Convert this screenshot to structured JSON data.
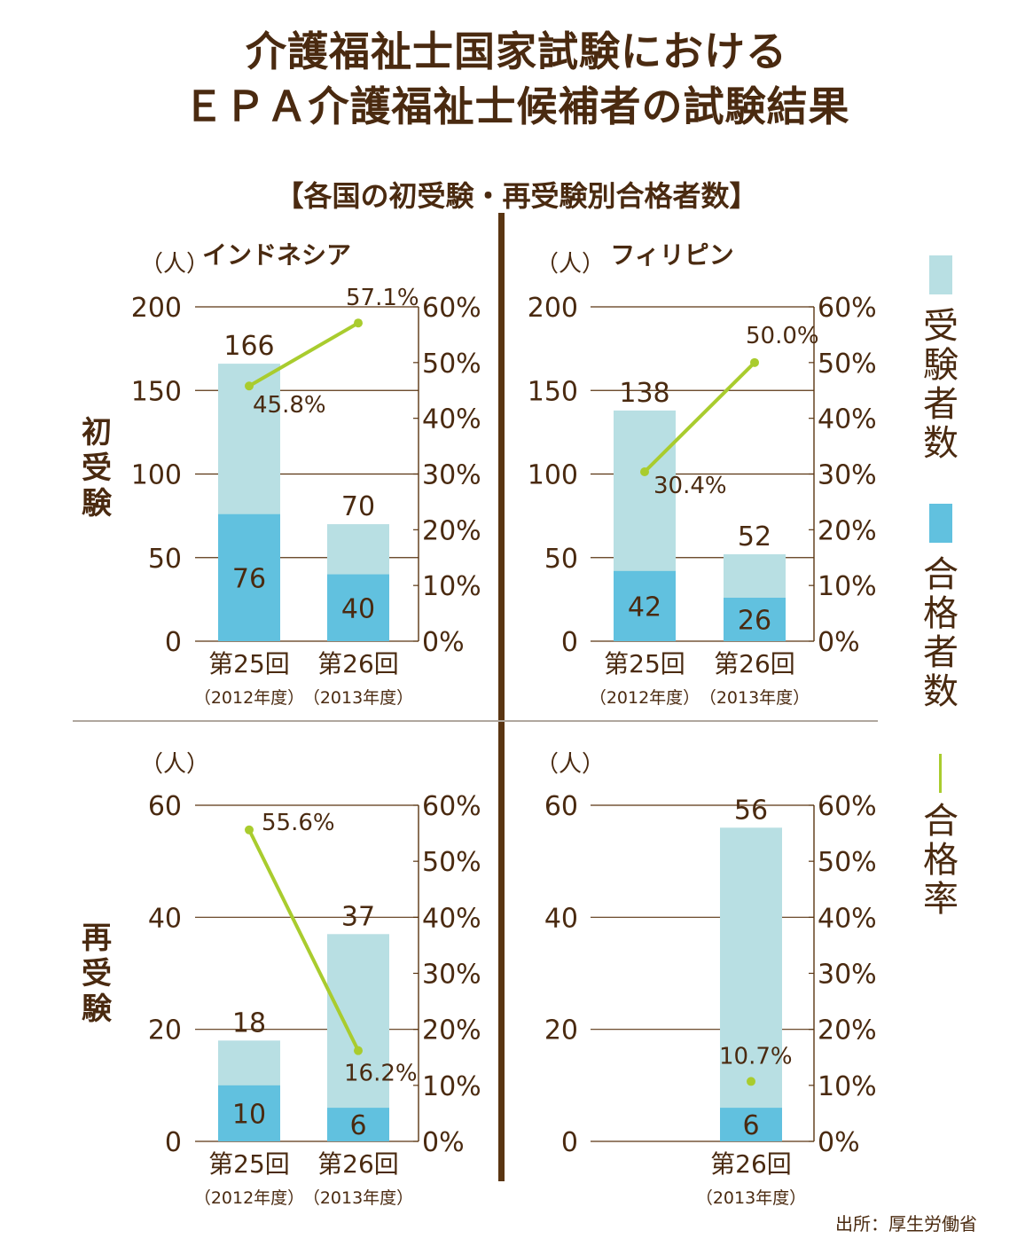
{
  "header": {
    "title_line1": "介護福祉士国家試験における",
    "title_line2": "ＥＰＡ介護福祉士候補者の試験結果",
    "subtitle": "【各国の初受験・再受験別合格者数】"
  },
  "columns": {
    "left": "インドネシア",
    "right": "フィリピン"
  },
  "rows": {
    "top": "初受験",
    "bottom": "再受験"
  },
  "legend": {
    "examinees": "受験者数",
    "passers": "合格者数",
    "pass_rate": "合格率"
  },
  "colors": {
    "examinees": "#b8dfe3",
    "passers": "#61c1df",
    "pass_rate": "#a9cc2e",
    "text": "#4a2a10",
    "divider": "#5a3512"
  },
  "source": "出所：厚生労働省",
  "chart_data": [
    {
      "type": "bar",
      "panel": "indonesia-first",
      "y_unit_label": "（人）",
      "ylim": [
        0,
        200
      ],
      "y_ticks": [
        0,
        50,
        100,
        150,
        200
      ],
      "y2lim": [
        0,
        60
      ],
      "y2_ticks": [
        "0%",
        "10%",
        "20%",
        "30%",
        "40%",
        "50%",
        "60%"
      ],
      "categories": [
        "第25回",
        "第26回"
      ],
      "category_sublabels": [
        "（2012年度）",
        "（2013年度）"
      ],
      "examinees": [
        166,
        70
      ],
      "passers": [
        76,
        40
      ],
      "pass_rate": [
        45.8,
        57.1
      ],
      "pass_rate_labels": [
        "45.8%",
        "57.1%"
      ]
    },
    {
      "type": "bar",
      "panel": "philippines-first",
      "y_unit_label": "（人）",
      "ylim": [
        0,
        200
      ],
      "y_ticks": [
        0,
        50,
        100,
        150,
        200
      ],
      "y2lim": [
        0,
        60
      ],
      "y2_ticks": [
        "0%",
        "10%",
        "20%",
        "30%",
        "40%",
        "50%",
        "60%"
      ],
      "categories": [
        "第25回",
        "第26回"
      ],
      "category_sublabels": [
        "（2012年度）",
        "（2013年度）"
      ],
      "examinees": [
        138,
        52
      ],
      "passers": [
        42,
        26
      ],
      "pass_rate": [
        30.4,
        50.0
      ],
      "pass_rate_labels": [
        "30.4%",
        "50.0%"
      ]
    },
    {
      "type": "bar",
      "panel": "indonesia-retake",
      "y_unit_label": "（人）",
      "ylim": [
        0,
        60
      ],
      "y_ticks": [
        0,
        20,
        40,
        60
      ],
      "y2lim": [
        0,
        60
      ],
      "y2_ticks": [
        "0%",
        "10%",
        "20%",
        "30%",
        "40%",
        "50%",
        "60%"
      ],
      "categories": [
        "第25回",
        "第26回"
      ],
      "category_sublabels": [
        "（2012年度）",
        "（2013年度）"
      ],
      "examinees": [
        18,
        37
      ],
      "passers": [
        10,
        6
      ],
      "pass_rate": [
        55.6,
        16.2
      ],
      "pass_rate_labels": [
        "55.6%",
        "16.2%"
      ]
    },
    {
      "type": "bar",
      "panel": "philippines-retake",
      "y_unit_label": "（人）",
      "ylim": [
        0,
        60
      ],
      "y_ticks": [
        0,
        20,
        40,
        60
      ],
      "y2lim": [
        0,
        60
      ],
      "y2_ticks": [
        "0%",
        "10%",
        "20%",
        "30%",
        "40%",
        "50%",
        "60%"
      ],
      "categories": [
        "",
        "第26回"
      ],
      "category_sublabels": [
        "",
        "（2013年度）"
      ],
      "examinees": [
        null,
        56
      ],
      "passers": [
        null,
        6
      ],
      "pass_rate": [
        null,
        10.7
      ],
      "pass_rate_labels": [
        "",
        "10.7%"
      ]
    }
  ]
}
